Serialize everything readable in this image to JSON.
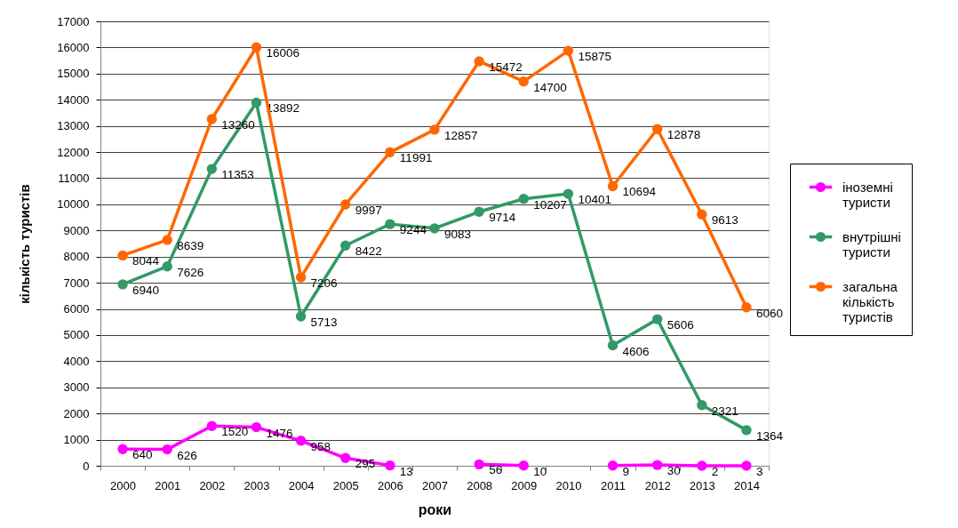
{
  "chart_data": {
    "type": "line",
    "xlabel": "роки",
    "ylabel": "кількість туристів",
    "categories": [
      "2000",
      "2001",
      "2002",
      "2003",
      "2004",
      "2005",
      "2006",
      "2007",
      "2008",
      "2009",
      "2010",
      "2011",
      "2012",
      "2013",
      "2014"
    ],
    "series": [
      {
        "name": "іноземні туристи",
        "color": "#ff00ff",
        "values": [
          640,
          626,
          1520,
          1476,
          958,
          295,
          13,
          null,
          56,
          10,
          null,
          9,
          30,
          2,
          3
        ]
      },
      {
        "name": "внутрішні туристи",
        "color": "#339966",
        "values": [
          6940,
          7626,
          11353,
          13892,
          5713,
          8422,
          9244,
          9083,
          9714,
          10207,
          10401,
          4606,
          5606,
          2321,
          1364
        ]
      },
      {
        "name": "загальна кількість туристів",
        "color": "#ff6600",
        "values": [
          8044,
          8639,
          13260,
          16006,
          7206,
          9997,
          11991,
          12857,
          15472,
          14700,
          15875,
          10694,
          12878,
          9613,
          6060
        ]
      }
    ],
    "ylim": [
      0,
      17000
    ],
    "yticks": [
      0,
      1000,
      2000,
      3000,
      4000,
      5000,
      6000,
      7000,
      8000,
      9000,
      10000,
      11000,
      12000,
      13000,
      14000,
      15000,
      16000,
      17000
    ],
    "grid": "y",
    "legend": "right",
    "marker": "circle",
    "line_style": "solid",
    "data_labels": true
  }
}
